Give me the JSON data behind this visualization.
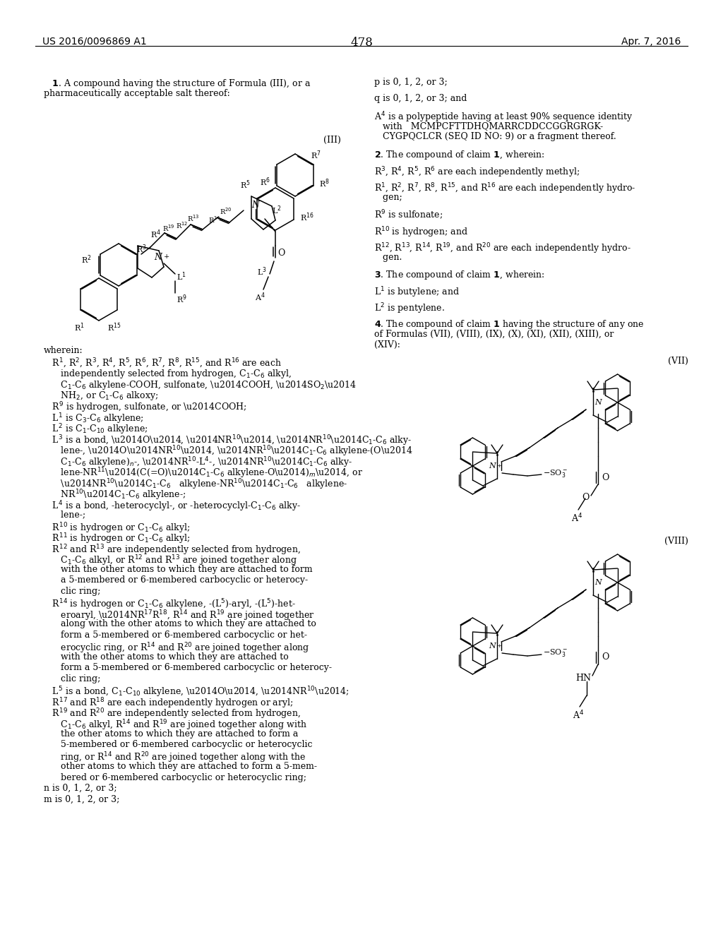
{
  "page_number": "478",
  "header_left": "US 2016/0096869 A1",
  "header_right": "Apr. 7, 2016",
  "background_color": "#ffffff"
}
